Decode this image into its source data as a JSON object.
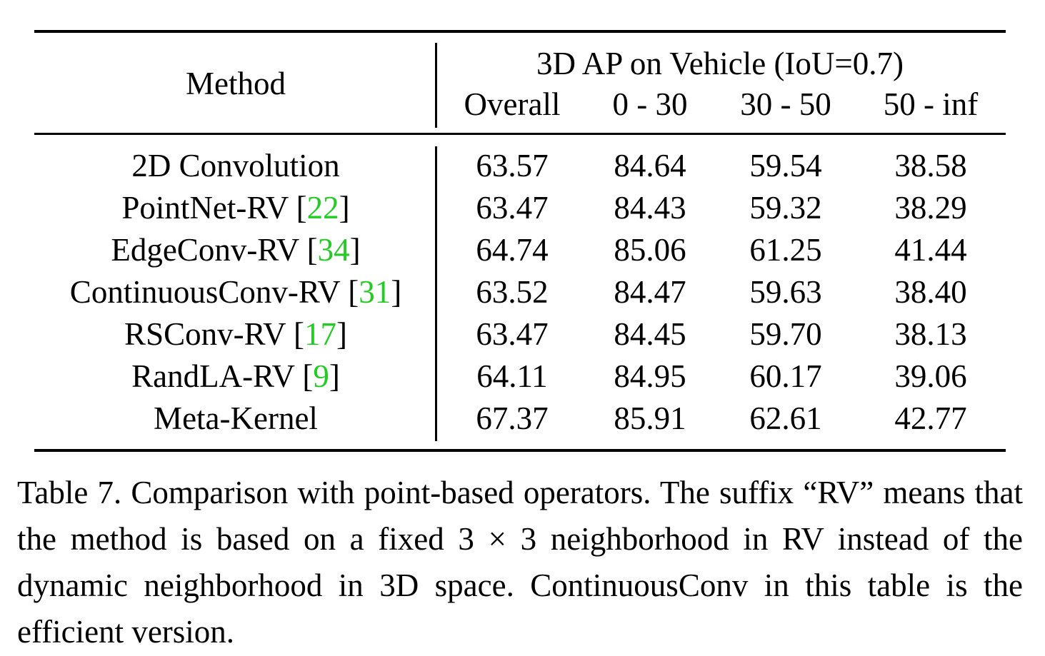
{
  "table": {
    "method_header": "Method",
    "group_header": "3D AP on Vehicle (IoU=0.7)",
    "sub_headers": [
      "Overall",
      "0 - 30",
      "30 - 50",
      "50 - inf"
    ],
    "rows": [
      {
        "method": "2D Convolution",
        "cite": "",
        "values": [
          "63.57",
          "84.64",
          "59.54",
          "38.58"
        ]
      },
      {
        "method": "PointNet-RV",
        "cite": "22",
        "values": [
          "63.47",
          "84.43",
          "59.32",
          "38.29"
        ]
      },
      {
        "method": "EdgeConv-RV",
        "cite": "34",
        "values": [
          "64.74",
          "85.06",
          "61.25",
          "41.44"
        ]
      },
      {
        "method": "ContinuousConv-RV",
        "cite": "31",
        "values": [
          "63.52",
          "84.47",
          "59.63",
          "38.40"
        ]
      },
      {
        "method": "RSConv-RV",
        "cite": "17",
        "values": [
          "63.47",
          "84.45",
          "59.70",
          "38.13"
        ]
      },
      {
        "method": "RandLA-RV",
        "cite": "9",
        "values": [
          "64.11",
          "84.95",
          "60.17",
          "39.06"
        ]
      },
      {
        "method": "Meta-Kernel",
        "cite": "",
        "values": [
          "67.37",
          "85.91",
          "62.61",
          "42.77"
        ]
      }
    ],
    "colors": {
      "citation": "#22cc22"
    }
  },
  "caption": "Table 7. Comparison with point-based operators. The suffix “RV” means that the method is based on a fixed 3 × 3 neighborhood in RV instead of the dynamic neighborhood in 3D space. ContinuousConv in this table is the efficient version."
}
